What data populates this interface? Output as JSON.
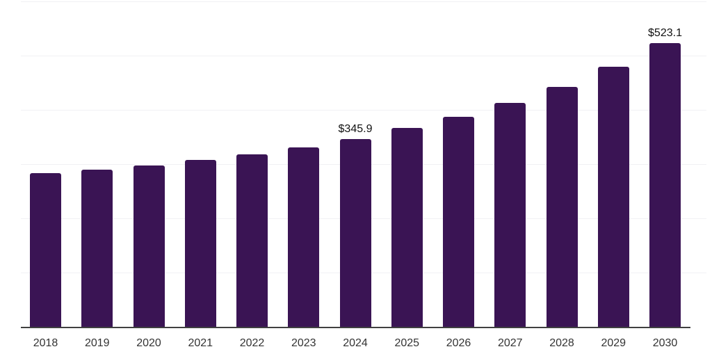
{
  "chart_data": {
    "type": "bar",
    "title": "",
    "xlabel": "",
    "ylabel": "",
    "categories": [
      "2018",
      "2019",
      "2020",
      "2021",
      "2022",
      "2023",
      "2024",
      "2025",
      "2026",
      "2027",
      "2028",
      "2029",
      "2030"
    ],
    "values": [
      283.0,
      289.5,
      297.0,
      307.3,
      317.6,
      330.4,
      345.9,
      366.0,
      386.8,
      413.0,
      442.0,
      479.0,
      523.1
    ],
    "value_labels": [
      "",
      "",
      "",
      "",
      "",
      "",
      "$345.9",
      "",
      "",
      "",
      "",
      "",
      "$523.1"
    ],
    "ylim": [
      0,
      602
    ],
    "gridline_values": [
      100,
      200,
      300,
      400,
      500,
      600
    ],
    "grid": "horizontal-only",
    "legend": "none",
    "currency_prefix": "$"
  },
  "colors": {
    "background": "#ffffff",
    "bar": "#3A1454",
    "gridline": "#f1f1f4",
    "axis_line": "#404040",
    "tick_label": "#333333",
    "value_label": "#111111"
  }
}
